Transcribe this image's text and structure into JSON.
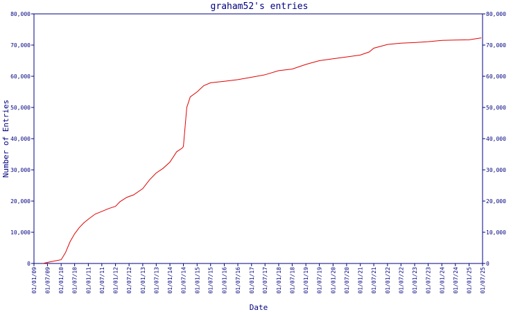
{
  "chart_data": {
    "type": "line",
    "title": "graham52's entries",
    "xlabel": "Date",
    "ylabel": "Number of Entries",
    "ylim": [
      0,
      80000
    ],
    "xlim": [
      "2009-01-01",
      "2025-07-01"
    ],
    "grid": false,
    "legend": "none",
    "y_ticks": [
      0,
      10000,
      20000,
      30000,
      40000,
      50000,
      60000,
      70000,
      80000
    ],
    "y_tick_labels": [
      "0",
      "10,000",
      "20,000",
      "30,000",
      "40,000",
      "50,000",
      "60,000",
      "70,000",
      "80,000"
    ],
    "x_ticks": [
      "2009-01-01",
      "2009-07-01",
      "2010-01-01",
      "2010-07-01",
      "2011-01-01",
      "2011-07-01",
      "2012-01-01",
      "2012-07-01",
      "2013-01-01",
      "2013-07-01",
      "2014-01-01",
      "2014-07-01",
      "2015-01-01",
      "2015-07-01",
      "2016-01-01",
      "2016-07-01",
      "2017-01-01",
      "2017-07-01",
      "2018-01-01",
      "2018-07-01",
      "2019-01-01",
      "2019-07-01",
      "2020-01-01",
      "2020-07-01",
      "2021-01-01",
      "2021-07-01",
      "2022-01-01",
      "2022-07-01",
      "2023-01-01",
      "2023-07-01",
      "2024-01-01",
      "2024-07-01",
      "2025-01-01",
      "2025-07-01"
    ],
    "x_tick_labels": [
      "01/01/09",
      "01/07/09",
      "01/01/10",
      "01/07/10",
      "01/01/11",
      "01/07/11",
      "01/01/12",
      "01/07/12",
      "01/01/13",
      "01/07/13",
      "01/01/14",
      "01/07/14",
      "01/01/15",
      "01/07/15",
      "01/01/16",
      "01/07/16",
      "01/01/17",
      "01/07/17",
      "01/01/18",
      "01/07/18",
      "01/01/19",
      "01/07/19",
      "01/01/20",
      "01/07/20",
      "01/01/21",
      "01/07/21",
      "01/01/22",
      "01/07/22",
      "01/01/23",
      "01/07/23",
      "01/01/24",
      "01/07/24",
      "01/01/25",
      "01/07/25"
    ],
    "series": [
      {
        "color": "#e00000",
        "points": [
          [
            "2009-05-01",
            0
          ],
          [
            "2009-08-01",
            500
          ],
          [
            "2009-11-01",
            900
          ],
          [
            "2010-01-01",
            1200
          ],
          [
            "2010-03-01",
            3500
          ],
          [
            "2010-05-01",
            7000
          ],
          [
            "2010-07-01",
            9500
          ],
          [
            "2010-09-01",
            11500
          ],
          [
            "2010-11-01",
            13000
          ],
          [
            "2011-01-01",
            14200
          ],
          [
            "2011-04-01",
            15800
          ],
          [
            "2011-07-01",
            16700
          ],
          [
            "2011-10-01",
            17600
          ],
          [
            "2012-01-01",
            18300
          ],
          [
            "2012-03-01",
            19800
          ],
          [
            "2012-06-01",
            21200
          ],
          [
            "2012-09-01",
            22000
          ],
          [
            "2013-01-01",
            24000
          ],
          [
            "2013-04-01",
            26800
          ],
          [
            "2013-07-01",
            29000
          ],
          [
            "2013-10-01",
            30500
          ],
          [
            "2014-01-01",
            32500
          ],
          [
            "2014-04-01",
            35800
          ],
          [
            "2014-06-15",
            37000
          ],
          [
            "2014-07-01",
            37500
          ],
          [
            "2014-08-15",
            50000
          ],
          [
            "2014-10-01",
            53400
          ],
          [
            "2015-01-01",
            55000
          ],
          [
            "2015-04-01",
            57000
          ],
          [
            "2015-07-01",
            57900
          ],
          [
            "2016-01-01",
            58400
          ],
          [
            "2016-07-01",
            58900
          ],
          [
            "2017-01-01",
            59700
          ],
          [
            "2017-07-01",
            60500
          ],
          [
            "2018-01-01",
            61800
          ],
          [
            "2018-07-01",
            62300
          ],
          [
            "2019-01-01",
            63800
          ],
          [
            "2019-07-01",
            65000
          ],
          [
            "2020-01-01",
            65600
          ],
          [
            "2020-07-01",
            66200
          ],
          [
            "2021-01-01",
            66800
          ],
          [
            "2021-05-01",
            67800
          ],
          [
            "2021-07-01",
            69000
          ],
          [
            "2022-01-01",
            70200
          ],
          [
            "2022-07-01",
            70600
          ],
          [
            "2023-01-01",
            70800
          ],
          [
            "2023-07-01",
            71100
          ],
          [
            "2024-01-01",
            71500
          ],
          [
            "2024-07-01",
            71600
          ],
          [
            "2025-01-01",
            71700
          ],
          [
            "2025-06-15",
            72300
          ]
        ]
      }
    ]
  }
}
